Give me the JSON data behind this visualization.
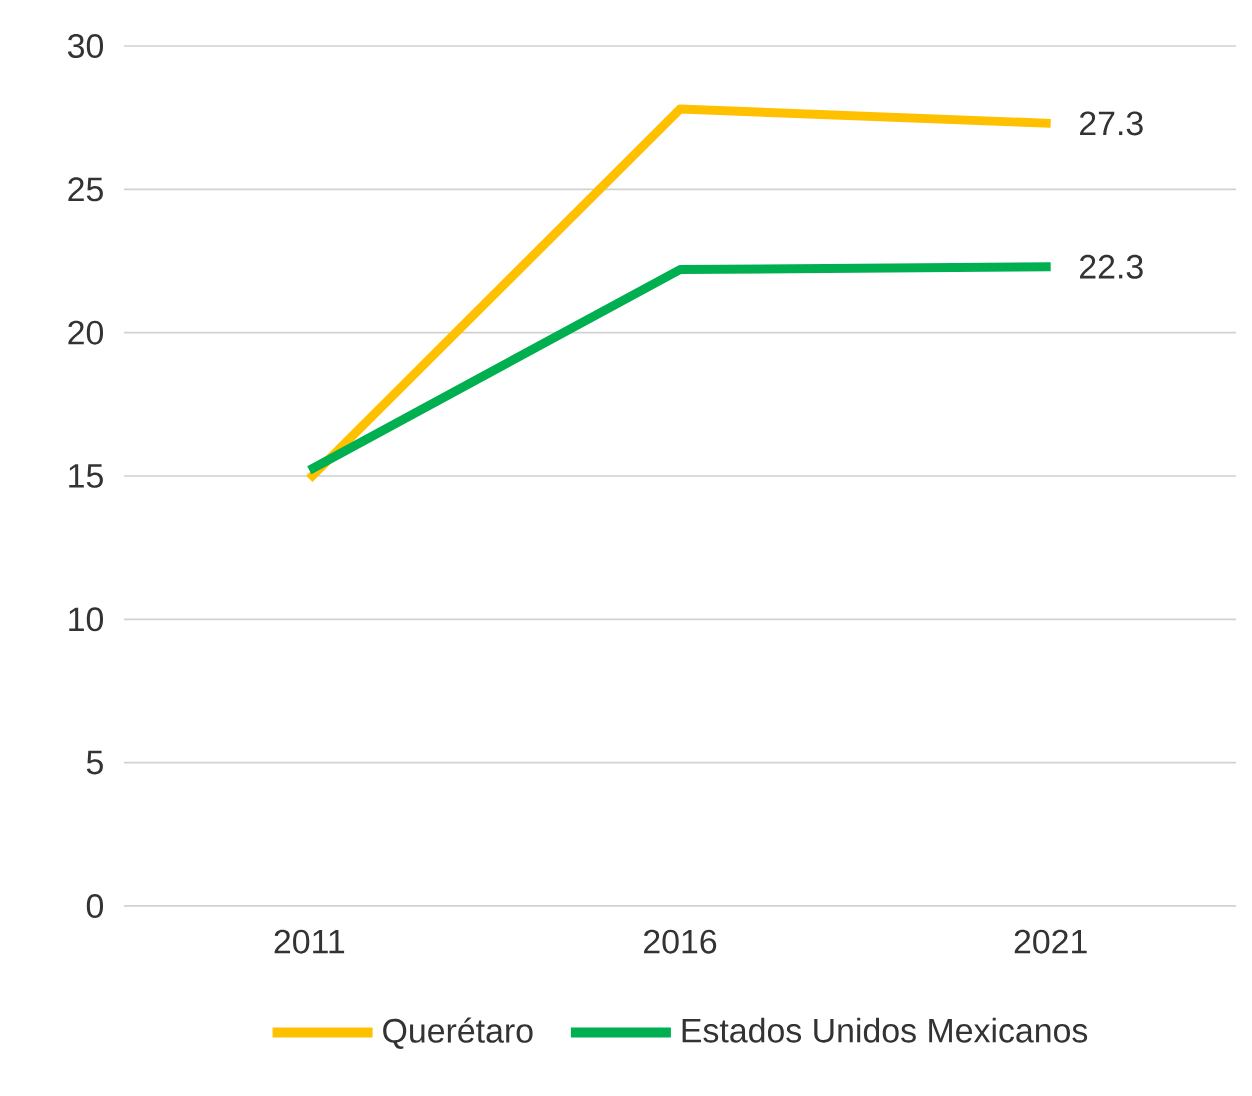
{
  "chart_data": {
    "type": "line",
    "categories": [
      "2011",
      "2016",
      "2021"
    ],
    "series": [
      {
        "name": "Querétaro",
        "color": "#ffc000",
        "values": [
          14.9,
          27.8,
          27.3
        ],
        "value_labels": [
          null,
          null,
          "27.3"
        ]
      },
      {
        "name": "Estados Unidos Mexicanos",
        "color": "#00b050",
        "values": [
          15.2,
          22.2,
          22.3
        ],
        "value_labels": [
          null,
          null,
          "22.3"
        ]
      }
    ],
    "ylim": [
      0,
      30
    ],
    "yticks": [
      0,
      5,
      10,
      15,
      20,
      25,
      30
    ],
    "grid": "y",
    "legend": "bottom",
    "marker": "none",
    "line_style": "solid"
  }
}
